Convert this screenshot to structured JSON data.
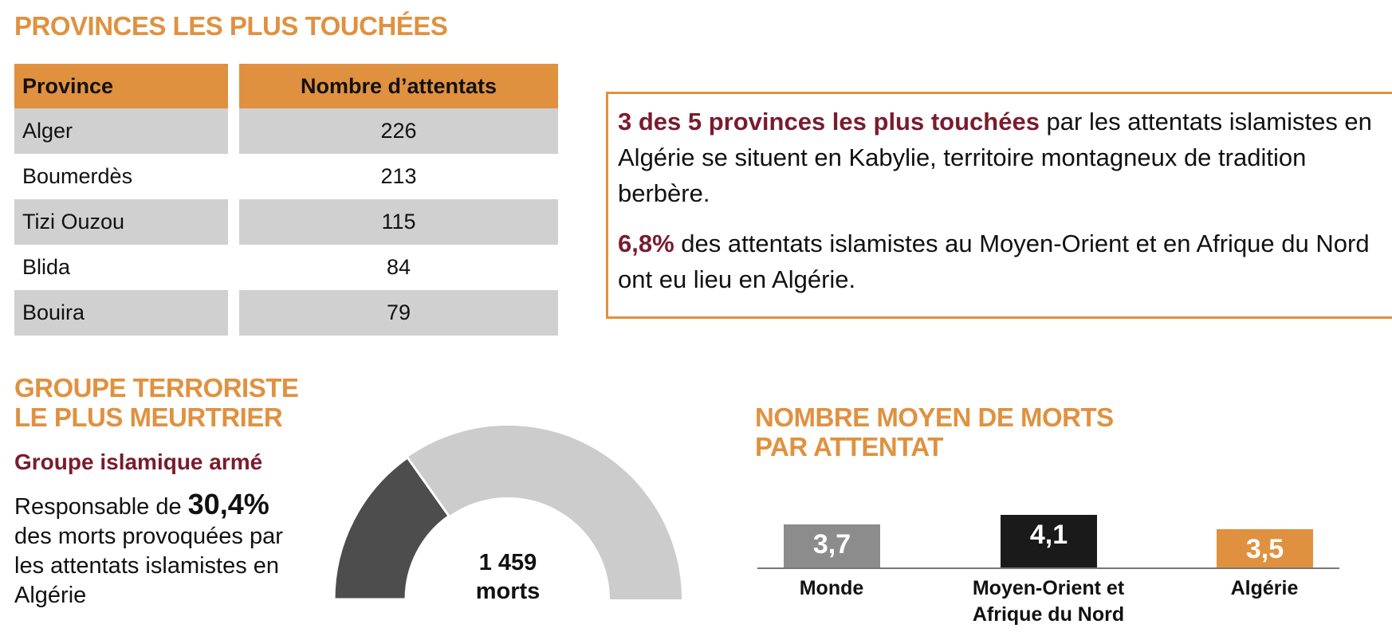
{
  "provinces": {
    "title": "PROVINCES LES PLUS TOUCHÉES",
    "headers": [
      "Province",
      "Nombre d’attentats"
    ],
    "rows": [
      [
        "Alger",
        "226"
      ],
      [
        "Boumerdès",
        "213"
      ],
      [
        "Tizi Ouzou",
        "115"
      ],
      [
        "Blida",
        "84"
      ],
      [
        "Bouira",
        "79"
      ]
    ]
  },
  "callout": {
    "p1_bold": "3 des 5 provinces les plus touchées",
    "p1_rest": " par les attentats islamistes en Algérie se situent en Kabylie, territoire montagneux de tradition berbère.",
    "p2_bold": "6,8%",
    "p2_rest": " des attentats islamistes au Moyen-Orient et en Afrique du Nord ont eu lieu en Algérie."
  },
  "group": {
    "title_line1": "GROUPE TERRORISTE",
    "title_line2": "LE PLUS MEURTRIER",
    "name": "Groupe islamique armé",
    "desc_prefix": "Responsable de ",
    "percent": "30,4%",
    "desc_rest": "des morts provoquées par les attentats islamistes en Algérie",
    "gauge_fraction": 0.304,
    "total_value": "1 459",
    "total_unit": "morts",
    "colors": {
      "share": "#4d4d4d",
      "rest": "#cccccc"
    }
  },
  "chart_data": {
    "type": "bar",
    "title": "NOMBRE MOYEN DE MORTS PAR ATTENTAT",
    "categories": [
      "Monde",
      "Moyen-Orient et Afrique du Nord",
      "Algérie"
    ],
    "values": [
      3.7,
      4.1,
      3.5
    ],
    "labels": [
      "3,7",
      "4,1",
      "3,5"
    ],
    "colors": [
      "#8c8c8c",
      "#1a1a1a",
      "#e0913f"
    ]
  }
}
